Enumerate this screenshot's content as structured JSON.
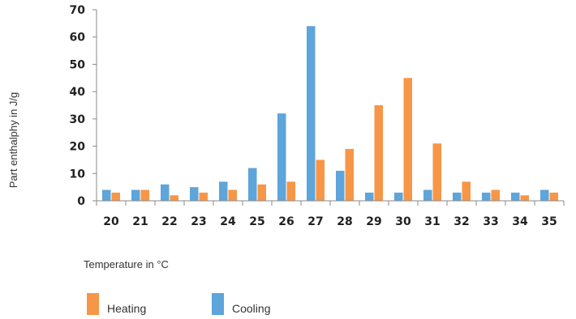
{
  "chart_data": {
    "type": "bar",
    "categories": [
      "20",
      "21",
      "22",
      "23",
      "24",
      "25",
      "26",
      "27",
      "28",
      "29",
      "30",
      "31",
      "32",
      "33",
      "34",
      "35"
    ],
    "series": [
      {
        "name": "Cooling",
        "color": "#5DA5DA",
        "values": [
          4,
          4,
          6,
          5,
          7,
          12,
          32,
          64,
          11,
          3,
          3,
          4,
          3,
          3,
          3,
          4
        ]
      },
      {
        "name": "Heating",
        "color": "#F79646",
        "values": [
          3,
          4,
          2,
          3,
          4,
          6,
          7,
          15,
          19,
          35,
          45,
          21,
          7,
          4,
          2,
          3
        ]
      }
    ],
    "xlabel": "Temperature in °C",
    "ylabel": "Part enthalphy in J/g",
    "ylim": [
      0,
      70
    ],
    "yticks": [
      "0",
      "10",
      "20",
      "30",
      "40",
      "50",
      "60",
      "70"
    ],
    "grid": false,
    "legend": [
      {
        "label": "Heating",
        "color": "#F79646"
      },
      {
        "label": "Cooling",
        "color": "#5DA5DA"
      }
    ],
    "legend_position": "bottom-left"
  }
}
